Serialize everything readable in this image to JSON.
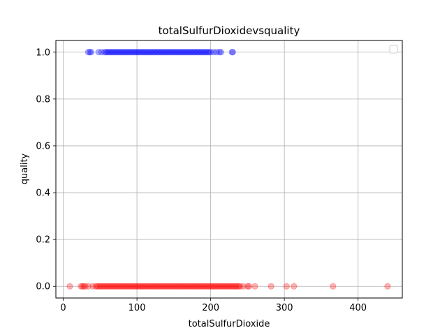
{
  "chart_data": {
    "type": "scatter",
    "title": "totalSulfurDioxidevsquality",
    "xlabel": "totalSulfurDioxide",
    "ylabel": "quality",
    "xlim": [
      -10,
      460
    ],
    "ylim": [
      -0.05,
      1.05
    ],
    "xticks": [
      0,
      100,
      200,
      300,
      400
    ],
    "yticks": [
      0.0,
      0.2,
      0.4,
      0.6,
      0.8,
      1.0
    ],
    "xtick_labels": [
      "0",
      "100",
      "200",
      "300",
      "400"
    ],
    "ytick_labels": [
      "0.0",
      "0.2",
      "0.4",
      "0.6",
      "0.8",
      "1.0"
    ],
    "grid": true,
    "legend": {
      "placement": "top-right",
      "entries": []
    },
    "series": [
      {
        "color": "#0000ff",
        "alpha": 0.3,
        "y": 1,
        "x": [
          34,
          36,
          38,
          48,
          52,
          56,
          58,
          60,
          62,
          64,
          66,
          68,
          70,
          72,
          74,
          76,
          78,
          80,
          82,
          84,
          86,
          88,
          90,
          92,
          94,
          96,
          98,
          100,
          102,
          104,
          106,
          108,
          110,
          112,
          114,
          116,
          118,
          120,
          122,
          124,
          126,
          128,
          130,
          132,
          134,
          136,
          138,
          140,
          142,
          144,
          146,
          148,
          150,
          152,
          154,
          156,
          158,
          160,
          162,
          164,
          166,
          168,
          170,
          172,
          174,
          176,
          178,
          180,
          182,
          184,
          186,
          188,
          190,
          192,
          194,
          196,
          198,
          200,
          204,
          208,
          212,
          214,
          229,
          230
        ]
      },
      {
        "color": "#ff0000",
        "alpha": 0.3,
        "y": 0,
        "x": [
          9,
          24,
          26,
          28,
          30,
          34,
          40,
          44,
          46,
          48,
          50,
          52,
          54,
          56,
          58,
          60,
          62,
          64,
          66,
          68,
          70,
          72,
          74,
          76,
          78,
          80,
          82,
          84,
          86,
          88,
          90,
          92,
          94,
          96,
          98,
          100,
          102,
          104,
          106,
          108,
          110,
          112,
          114,
          116,
          118,
          120,
          122,
          124,
          126,
          128,
          130,
          132,
          134,
          136,
          138,
          140,
          142,
          144,
          146,
          148,
          150,
          152,
          154,
          156,
          158,
          160,
          162,
          164,
          166,
          168,
          170,
          172,
          174,
          176,
          178,
          180,
          182,
          184,
          186,
          188,
          190,
          192,
          194,
          196,
          198,
          200,
          202,
          204,
          206,
          208,
          210,
          212,
          214,
          216,
          218,
          220,
          222,
          224,
          226,
          228,
          230,
          232,
          234,
          236,
          238,
          240,
          244,
          250,
          252,
          260,
          282,
          303,
          313,
          366,
          440
        ]
      }
    ]
  }
}
